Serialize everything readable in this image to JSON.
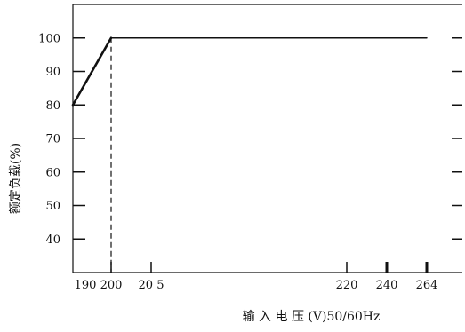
{
  "chart_data": {
    "type": "line",
    "title": "",
    "xlabel": "输 入 电 压 (V)50/60Hz",
    "ylabel": "额定负载(%)",
    "x_ticks": [
      {
        "value": 190,
        "label": "190"
      },
      {
        "value": 200,
        "label": "200"
      },
      {
        "value": 205,
        "label": "20 5"
      },
      {
        "value": 220,
        "label": "220"
      },
      {
        "value": 240,
        "label": "240"
      },
      {
        "value": 264,
        "label": "264"
      }
    ],
    "y_ticks": [
      40,
      50,
      60,
      70,
      80,
      90,
      100
    ],
    "ylim": [
      30,
      110
    ],
    "series": [
      {
        "points": [
          {
            "x": 190,
            "y": 80
          },
          {
            "x": 200,
            "y": 100
          },
          {
            "x": 264,
            "y": 100
          }
        ]
      }
    ],
    "reference_lines": [
      {
        "orientation": "vertical",
        "x": 200,
        "style": "dashed"
      }
    ],
    "grid": false,
    "colors": {
      "line": "#111111",
      "axis": "#111111"
    }
  }
}
